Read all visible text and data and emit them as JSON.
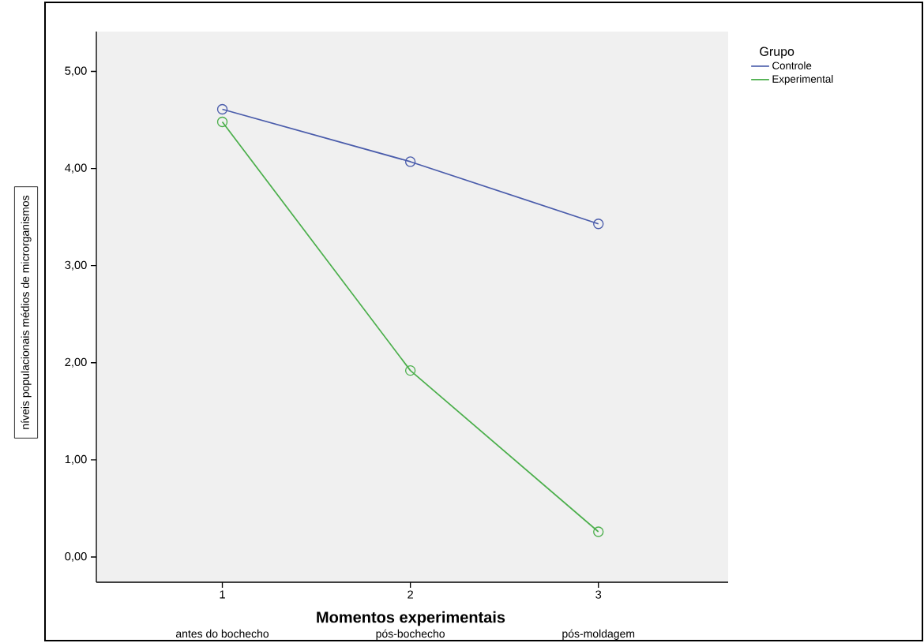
{
  "chart_data": {
    "type": "line",
    "xlabel": "Momentos experimentais",
    "ylabel": "níveis populacionais médios de microrganismos",
    "legend_title": "Grupo",
    "x": [
      1,
      2,
      3
    ],
    "xlim": [
      0.33,
      3.69
    ],
    "xticks": [
      1,
      2,
      3
    ],
    "ylim": [
      -0.26,
      5.41
    ],
    "yticks": [
      {
        "value": 0,
        "label": "0,00"
      },
      {
        "value": 1,
        "label": "1,00"
      },
      {
        "value": 2,
        "label": "2,00"
      },
      {
        "value": 3,
        "label": "3,00"
      },
      {
        "value": 4,
        "label": "4,00"
      },
      {
        "value": 5,
        "label": "5,00"
      }
    ],
    "series": [
      {
        "name": "Controle",
        "color": "#4a5cab",
        "values": [
          4.61,
          4.07,
          3.43
        ]
      },
      {
        "name": "Experimental",
        "color": "#4caf4c",
        "values": [
          4.48,
          1.92,
          0.26
        ]
      }
    ],
    "annotations": [
      "antes do bochecho",
      "pós-bochecho",
      "pós-moldagem"
    ],
    "marker": "circle",
    "line_style": "solid",
    "grid": false,
    "legend": "top right"
  }
}
